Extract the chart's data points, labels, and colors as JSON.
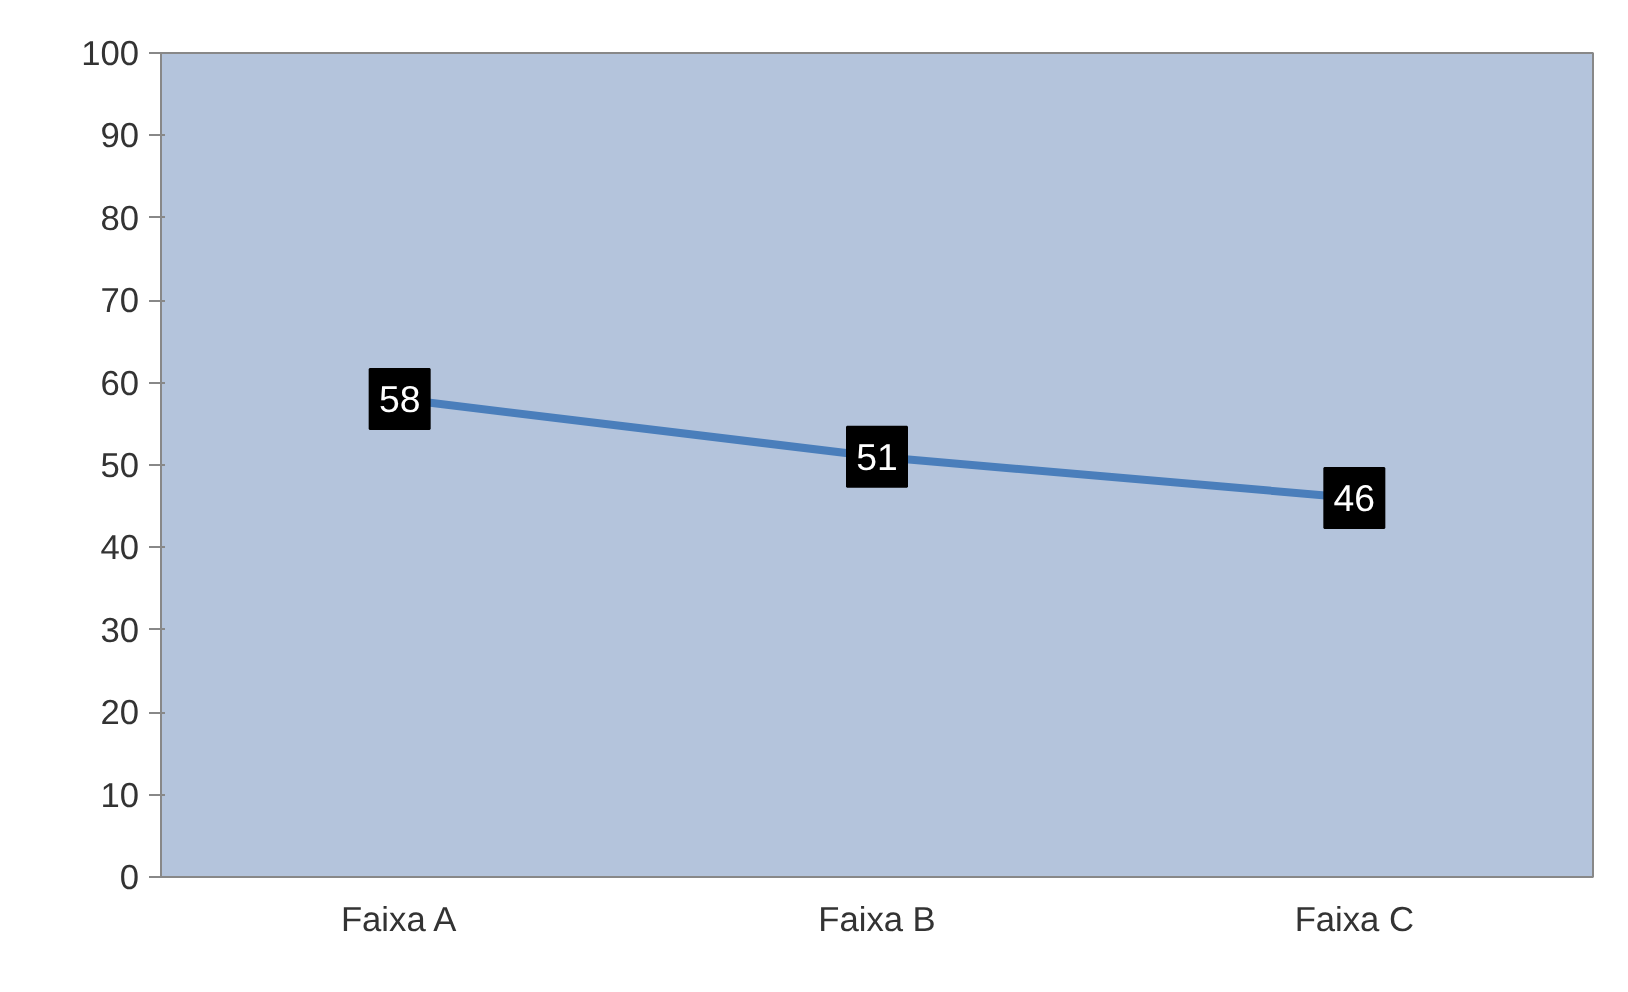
{
  "chart_data": {
    "type": "line",
    "categories": [
      "Faixa A",
      "Faixa B",
      "Faixa C"
    ],
    "series": [
      {
        "color": "#4a7ebb",
        "values": [
          58,
          51,
          46
        ]
      }
    ],
    "ylim": [
      0,
      100
    ],
    "yticks": [
      0,
      10,
      20,
      30,
      40,
      50,
      60,
      70,
      80,
      90,
      100
    ],
    "data_labels": true,
    "grid": false,
    "marker": "square",
    "line_style": "solid"
  }
}
